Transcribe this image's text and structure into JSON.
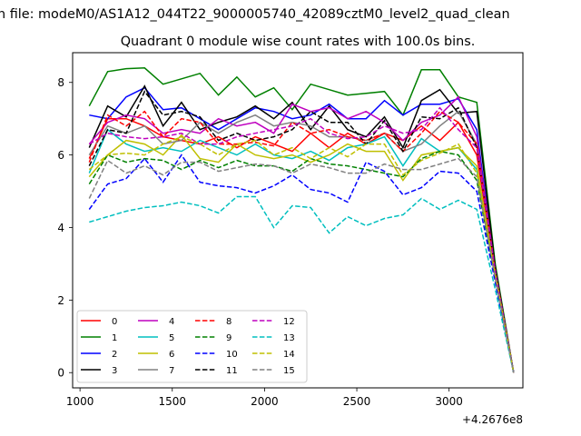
{
  "figure": {
    "suptitle": "n file: modeM0/AS1A12_044T22_9000005740_42089cztM0_level2_quad_clean",
    "title": "Quadrant 0 module wise count rates with 100.0s bins.",
    "offset_label": "+4.2676e8"
  },
  "chart_data": {
    "type": "line",
    "title": "Quadrant 0 module wise count rates with 100.0s bins.",
    "xlabel": "",
    "ylabel": "",
    "x_offset": 426760000,
    "xlim": [
      960,
      3400
    ],
    "ylim": [
      -0.42,
      8.82
    ],
    "xticks": [
      1000,
      1500,
      2000,
      2500,
      3000
    ],
    "xtick_labels": [
      "1000",
      "1500",
      "2000",
      "2500",
      "3000"
    ],
    "yticks": [
      0,
      2,
      4,
      6,
      8
    ],
    "ytick_labels": [
      "0",
      "2",
      "4",
      "6",
      "8"
    ],
    "grid": false,
    "legend_position": "lower-left",
    "x": [
      1050,
      1150,
      1250,
      1350,
      1450,
      1550,
      1650,
      1750,
      1850,
      1950,
      2050,
      2150,
      2250,
      2350,
      2450,
      2550,
      2650,
      2750,
      2850,
      2950,
      3050,
      3150,
      3250,
      3350
    ],
    "series": [
      {
        "name": "0",
        "color": "#ff0000",
        "dash": "solid",
        "values": [
          5.9,
          7.0,
          7.0,
          6.8,
          6.5,
          6.4,
          6.3,
          6.5,
          6.2,
          6.5,
          6.3,
          6.1,
          6.6,
          6.2,
          6.6,
          6.3,
          6.6,
          6.4,
          6.8,
          6.4,
          6.9,
          6.0,
          2.8,
          0.0
        ]
      },
      {
        "name": "1",
        "color": "#008000",
        "dash": "solid",
        "values": [
          7.35,
          8.3,
          8.38,
          8.4,
          7.95,
          8.1,
          8.25,
          7.65,
          8.15,
          7.6,
          7.85,
          7.25,
          7.95,
          7.8,
          7.65,
          7.7,
          7.75,
          7.1,
          8.35,
          8.35,
          7.6,
          7.45,
          3.0,
          0.0
        ]
      },
      {
        "name": "2",
        "color": "#0000ff",
        "dash": "solid",
        "values": [
          7.1,
          7.0,
          7.6,
          7.85,
          7.25,
          7.3,
          7.0,
          6.7,
          7.0,
          7.3,
          7.2,
          7.0,
          7.1,
          7.4,
          7.0,
          7.0,
          7.5,
          7.1,
          7.4,
          7.4,
          7.55,
          6.7,
          2.8,
          0.0
        ]
      },
      {
        "name": "3",
        "color": "#000000",
        "dash": "solid",
        "values": [
          6.2,
          7.35,
          7.05,
          7.9,
          6.8,
          7.45,
          6.7,
          6.9,
          7.05,
          7.35,
          7.0,
          7.45,
          6.7,
          7.35,
          6.7,
          6.5,
          7.05,
          6.2,
          7.5,
          7.8,
          7.15,
          7.2,
          2.9,
          0.0
        ]
      },
      {
        "name": "4",
        "color": "#bf00bf",
        "dash": "solid",
        "values": [
          6.3,
          6.9,
          7.1,
          7.0,
          6.6,
          6.7,
          6.6,
          7.0,
          6.8,
          6.9,
          6.6,
          7.4,
          7.2,
          7.3,
          7.0,
          7.2,
          6.9,
          6.4,
          6.9,
          7.1,
          7.6,
          6.5,
          2.8,
          0.0
        ]
      },
      {
        "name": "5",
        "color": "#00bfbf",
        "dash": "solid",
        "values": [
          5.5,
          6.7,
          6.3,
          6.1,
          6.2,
          6.1,
          6.4,
          6.2,
          6.0,
          6.3,
          6.0,
          5.9,
          6.1,
          5.85,
          6.2,
          6.3,
          6.5,
          5.7,
          6.45,
          6.1,
          6.2,
          5.6,
          2.7,
          0.0
        ]
      },
      {
        "name": "6",
        "color": "#bfbf00",
        "dash": "solid",
        "values": [
          5.4,
          6.0,
          6.4,
          6.3,
          6.0,
          6.55,
          5.9,
          5.8,
          6.3,
          6.0,
          5.9,
          6.0,
          5.8,
          6.0,
          6.3,
          6.1,
          6.1,
          5.3,
          6.0,
          6.1,
          6.2,
          5.7,
          2.7,
          0.0
        ]
      },
      {
        "name": "7",
        "color": "#808080",
        "dash": "solid",
        "values": [
          6.0,
          6.8,
          6.6,
          6.8,
          6.3,
          6.4,
          6.9,
          6.6,
          6.9,
          7.1,
          6.8,
          6.9,
          6.8,
          6.5,
          6.5,
          6.4,
          6.6,
          6.1,
          6.3,
          6.8,
          7.2,
          6.3,
          2.8,
          0.0
        ]
      },
      {
        "name": "8",
        "color": "#ff0000",
        "dash": "dashed",
        "values": [
          5.8,
          7.1,
          6.8,
          7.2,
          6.5,
          7.0,
          6.9,
          6.3,
          6.3,
          6.35,
          6.25,
          6.9,
          6.6,
          6.7,
          6.5,
          6.4,
          6.6,
          6.1,
          6.6,
          7.2,
          6.9,
          6.3,
          2.8,
          0.0
        ]
      },
      {
        "name": "9",
        "color": "#008000",
        "dash": "dashed",
        "values": [
          5.2,
          6.0,
          5.8,
          5.9,
          5.85,
          5.6,
          5.85,
          5.65,
          5.85,
          5.7,
          5.7,
          5.55,
          5.9,
          5.75,
          5.7,
          5.6,
          5.5,
          5.4,
          5.9,
          6.1,
          6.0,
          5.3,
          2.6,
          0.0
        ]
      },
      {
        "name": "10",
        "color": "#0000ff",
        "dash": "dashed",
        "values": [
          4.5,
          5.2,
          5.35,
          5.9,
          5.25,
          6.0,
          5.25,
          5.15,
          5.1,
          4.95,
          5.15,
          5.45,
          5.05,
          4.95,
          4.7,
          5.8,
          5.55,
          4.9,
          5.1,
          5.55,
          5.5,
          5.0,
          2.5,
          0.0
        ]
      },
      {
        "name": "11",
        "color": "#000000",
        "dash": "dashed",
        "values": [
          5.7,
          6.7,
          6.6,
          7.75,
          7.1,
          7.2,
          7.05,
          6.4,
          6.6,
          6.4,
          6.5,
          6.7,
          7.2,
          6.9,
          6.9,
          6.3,
          6.95,
          6.1,
          7.05,
          7.0,
          7.3,
          6.2,
          2.8,
          0.0
        ]
      },
      {
        "name": "12",
        "color": "#bf00bf",
        "dash": "dashed",
        "values": [
          6.3,
          6.6,
          6.5,
          6.45,
          6.5,
          6.6,
          6.3,
          6.3,
          6.5,
          6.6,
          6.7,
          6.8,
          7.0,
          6.6,
          6.45,
          6.5,
          6.8,
          6.6,
          6.7,
          7.3,
          6.7,
          6.2,
          2.8,
          0.0
        ]
      },
      {
        "name": "13",
        "color": "#00bfbf",
        "dash": "dashed",
        "values": [
          4.15,
          4.3,
          4.45,
          4.55,
          4.6,
          4.7,
          4.6,
          4.4,
          4.85,
          4.85,
          4.0,
          4.6,
          4.55,
          3.85,
          4.3,
          4.05,
          4.25,
          4.35,
          4.8,
          4.5,
          4.75,
          4.5,
          2.3,
          0.0
        ]
      },
      {
        "name": "14",
        "color": "#bfbf00",
        "dash": "dashed",
        "values": [
          5.6,
          6.0,
          6.05,
          6.0,
          6.3,
          6.5,
          6.3,
          6.0,
          6.3,
          6.4,
          6.0,
          6.2,
          5.9,
          6.2,
          5.95,
          6.3,
          6.3,
          5.45,
          5.85,
          6.05,
          6.3,
          5.5,
          2.7,
          0.0
        ]
      },
      {
        "name": "15",
        "color": "#808080",
        "dash": "dashed",
        "values": [
          4.8,
          5.85,
          5.5,
          5.7,
          5.45,
          5.8,
          5.8,
          5.55,
          5.65,
          5.75,
          5.7,
          5.5,
          5.75,
          5.65,
          5.5,
          5.5,
          5.75,
          5.6,
          5.6,
          5.75,
          5.9,
          5.4,
          2.6,
          0.0
        ]
      }
    ]
  }
}
